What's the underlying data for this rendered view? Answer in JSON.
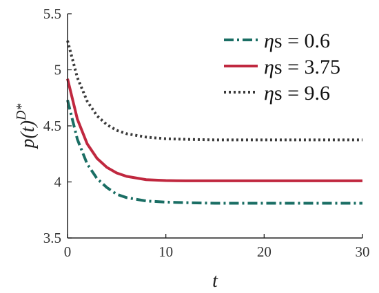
{
  "chart_data": {
    "type": "line",
    "title": "",
    "xlabel": "t",
    "ylabel": "p(t)",
    "ylabel_superscript": "D*",
    "xlim": [
      0,
      30
    ],
    "ylim": [
      3.5,
      5.5
    ],
    "xticks": [
      0,
      10,
      20,
      30
    ],
    "xtick_labels": [
      "0",
      "10",
      "20",
      "30"
    ],
    "yticks": [
      3.5,
      4,
      4.5,
      5,
      5.5
    ],
    "ytick_labels": [
      "3.5",
      "4",
      "4.5",
      "5",
      "5.5"
    ],
    "grid": false,
    "legend_position": "top-right",
    "series": [
      {
        "name": "ηs = 0.6",
        "legend_symbol": "η",
        "legend_rest": "s = 0.6",
        "color": "#1a6e64",
        "style": "dashdot",
        "x": [
          0,
          1,
          2,
          3,
          4,
          5,
          6,
          8,
          10,
          12,
          15,
          20,
          25,
          30
        ],
        "y": [
          4.73,
          4.38,
          4.16,
          4.03,
          3.95,
          3.89,
          3.86,
          3.83,
          3.82,
          3.815,
          3.81,
          3.81,
          3.81,
          3.81
        ]
      },
      {
        "name": "ηs = 3.75",
        "legend_symbol": "η",
        "legend_rest": "s = 3.75",
        "color": "#c0283f",
        "style": "solid",
        "x": [
          0,
          1,
          2,
          3,
          4,
          5,
          6,
          8,
          10,
          12,
          15,
          20,
          25,
          30
        ],
        "y": [
          4.92,
          4.56,
          4.34,
          4.21,
          4.13,
          4.08,
          4.05,
          4.02,
          4.012,
          4.01,
          4.01,
          4.01,
          4.01,
          4.01
        ]
      },
      {
        "name": "ηs = 9.6",
        "legend_symbol": "η",
        "legend_rest": "s = 9.6",
        "color": "#3a3a3a",
        "style": "dotted",
        "x": [
          0,
          1,
          2,
          3,
          4,
          5,
          6,
          8,
          10,
          12,
          15,
          20,
          25,
          30
        ],
        "y": [
          5.26,
          4.93,
          4.72,
          4.59,
          4.51,
          4.46,
          4.43,
          4.4,
          4.385,
          4.38,
          4.375,
          4.375,
          4.375,
          4.375
        ]
      }
    ]
  }
}
